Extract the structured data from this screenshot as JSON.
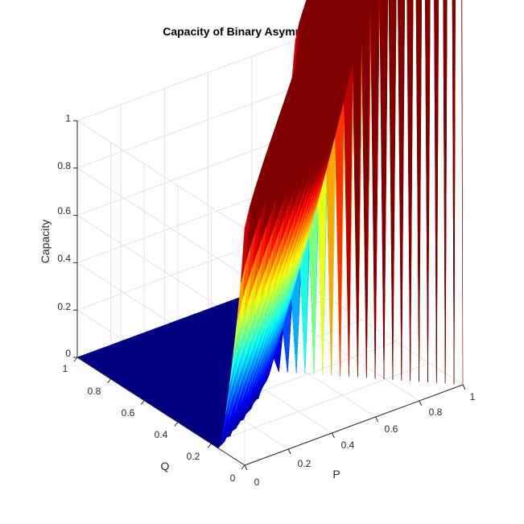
{
  "chart_data": {
    "type": "surface",
    "title": "Capacity of Binary Asymmetric Channel",
    "xlabel": "P",
    "ylabel": "Q",
    "zlabel": "Capacity",
    "x": {
      "label": "P",
      "range": [
        0,
        1
      ],
      "ticks": [
        "0",
        "0.2",
        "0.4",
        "0.6",
        "0.8",
        "1"
      ]
    },
    "y": {
      "label": "Q",
      "range": [
        0,
        1
      ],
      "ticks": [
        "0",
        "0.2",
        "0.4",
        "0.6",
        "0.8",
        "1"
      ]
    },
    "z": {
      "label": "Capacity",
      "range": [
        0,
        1
      ],
      "ticks": [
        "0",
        "0.2",
        "0.4",
        "0.6",
        "0.8",
        "1"
      ]
    },
    "colormap": "jet",
    "grid": true,
    "z_grid": [
      [
        1.0,
        0.531,
        0.278,
        0.125,
        0.037,
        0.0
      ],
      [
        0.531,
        0.278,
        0.125,
        0.037,
        0.0,
        0.037
      ],
      [
        0.278,
        0.125,
        0.037,
        0.0,
        0.037,
        0.125
      ],
      [
        0.125,
        0.037,
        0.0,
        0.037,
        0.125,
        0.278
      ],
      [
        0.037,
        0.0,
        0.037,
        0.125,
        0.278,
        0.531
      ],
      [
        0.0,
        0.037,
        0.125,
        0.278,
        0.531,
        1.0
      ]
    ]
  }
}
